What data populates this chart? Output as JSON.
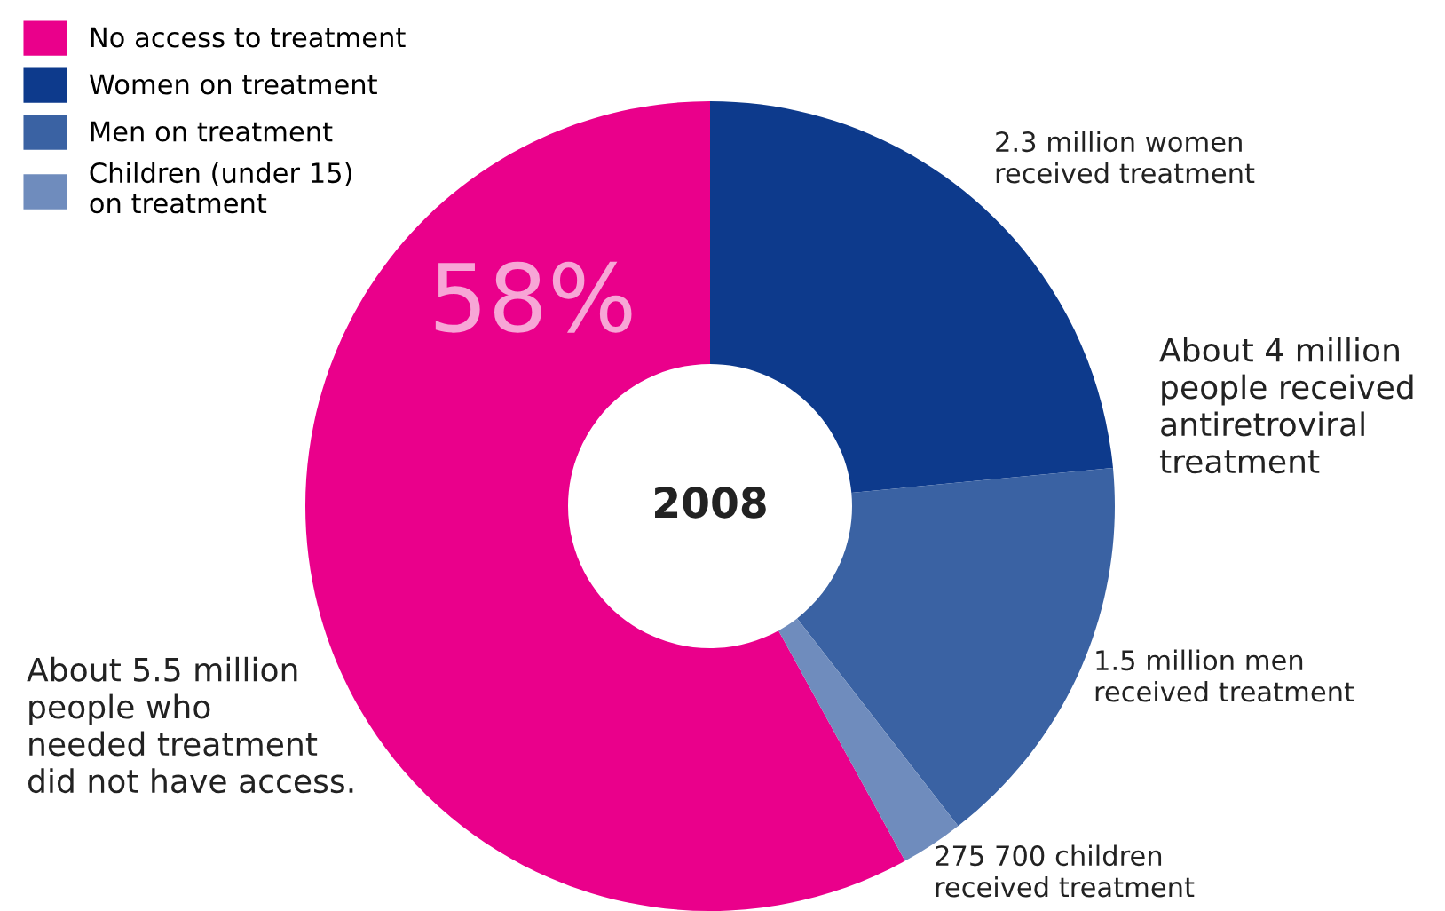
{
  "chart_data": {
    "type": "donut",
    "categories": [
      "No access to treatment",
      "Women on treatment",
      "Men on treatment",
      "Children (under 15)\non treatment"
    ],
    "values": [
      58,
      23.5,
      16,
      2.5
    ],
    "colors": [
      "#ea008b",
      "#0d3a8c",
      "#3a62a3",
      "#6f8cbd"
    ],
    "value_labels": [
      "58%",
      null,
      null,
      null
    ],
    "legend": "top left",
    "annotations": [
      "2008",
      "2.3 million women\nreceived treatment",
      "About 4 million\npeople received\nantiretroviral\ntreatment",
      "1.5 million men\nreceived treatment",
      "275 700 children\nreceived treatment",
      "About 5.5 million\npeople who\nneeded treatment\ndid not have access."
    ]
  }
}
